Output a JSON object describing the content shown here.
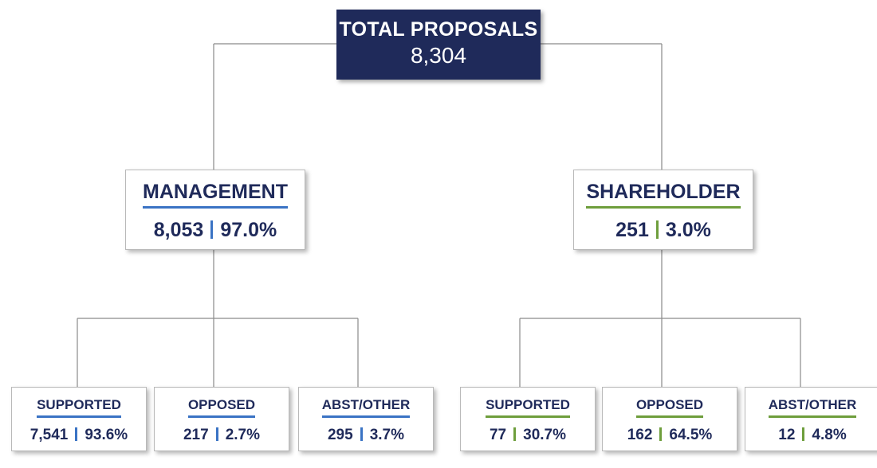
{
  "root": {
    "title": "TOTAL PROPOSALS",
    "value": "8,304"
  },
  "colors": {
    "navy": "#1f2a5a",
    "management_accent": "#3a73c4",
    "shareholder_accent": "#6e9e3c"
  },
  "management": {
    "title": "MANAGEMENT",
    "count": "8,053",
    "percent": "97.0%",
    "children": [
      {
        "title": "SUPPORTED",
        "count": "7,541",
        "percent": "93.6%"
      },
      {
        "title": "OPPOSED",
        "count": "217",
        "percent": "2.7%"
      },
      {
        "title": "ABST/OTHER",
        "count": "295",
        "percent": "3.7%"
      }
    ]
  },
  "shareholder": {
    "title": "SHAREHOLDER",
    "count": "251",
    "percent": "3.0%",
    "children": [
      {
        "title": "SUPPORTED",
        "count": "77",
        "percent": "30.7%"
      },
      {
        "title": "OPPOSED",
        "count": "162",
        "percent": "64.5%"
      },
      {
        "title": "ABST/OTHER",
        "count": "12",
        "percent": "4.8%"
      }
    ]
  }
}
